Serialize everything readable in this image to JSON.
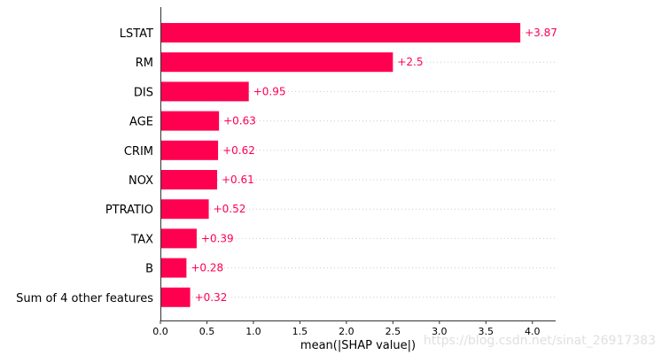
{
  "chart_data": {
    "type": "bar",
    "orientation": "horizontal",
    "categories": [
      "LSTAT",
      "RM",
      "DIS",
      "AGE",
      "CRIM",
      "NOX",
      "PTRATIO",
      "TAX",
      "B",
      "Sum of 4 other features"
    ],
    "values": [
      3.87,
      2.5,
      0.95,
      0.63,
      0.62,
      0.61,
      0.52,
      0.39,
      0.28,
      0.32
    ],
    "value_labels": [
      "+3.87",
      "+2.5",
      "+0.95",
      "+0.63",
      "+0.62",
      "+0.61",
      "+0.52",
      "+0.39",
      "+0.28",
      "+0.32"
    ],
    "xlabel": "mean(|SHAP value|)",
    "xlim": [
      0,
      4.25
    ],
    "xticks": [
      0.0,
      0.5,
      1.0,
      1.5,
      2.0,
      2.5,
      3.0,
      3.5,
      4.0
    ],
    "xtick_labels": [
      "0.0",
      "0.5",
      "1.0",
      "1.5",
      "2.0",
      "2.5",
      "3.0",
      "3.5",
      "4.0"
    ],
    "bar_color": "#ff0051",
    "label_color": "#ff0051",
    "grid": "dotted horizontal guide lines"
  },
  "watermark": "https://blog.csdn.net/sinat_26917383"
}
